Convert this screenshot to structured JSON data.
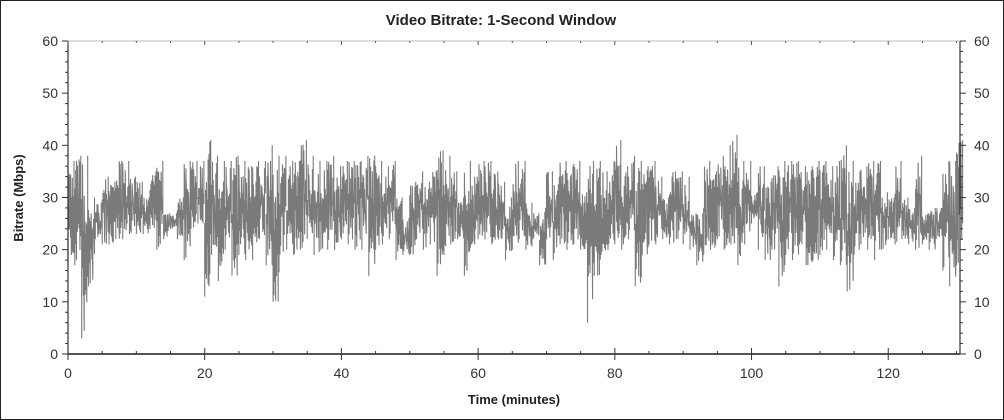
{
  "chart_data": {
    "type": "line",
    "title": "Video Bitrate: 1-Second Window",
    "xlabel": "Time (minutes)",
    "ylabel": "Bitrate (Mbps)",
    "xlim": [
      0,
      130.5
    ],
    "ylim": [
      0,
      60
    ],
    "x_ticks": [
      0,
      20,
      40,
      60,
      80,
      100,
      120
    ],
    "y_ticks": [
      0,
      10,
      20,
      30,
      40,
      50,
      60
    ],
    "right_axis_mirrored": true,
    "grid": false,
    "series_color": "#7a7a7a",
    "series": [
      {
        "encoding": "per-minute min/max range",
        "x_minutes": "0..130",
        "ranges": [
          [
            17,
            37
          ],
          [
            17,
            38
          ],
          [
            3,
            38
          ],
          [
            13,
            30
          ],
          [
            22,
            29
          ],
          [
            21,
            34
          ],
          [
            21,
            33
          ],
          [
            22,
            37
          ],
          [
            22,
            37
          ],
          [
            23,
            34
          ],
          [
            23,
            33
          ],
          [
            23,
            30
          ],
          [
            24,
            35
          ],
          [
            20,
            37
          ],
          [
            22,
            27
          ],
          [
            24,
            27
          ],
          [
            22,
            30
          ],
          [
            18,
            37
          ],
          [
            24,
            37
          ],
          [
            25,
            37
          ],
          [
            11,
            41
          ],
          [
            19,
            38
          ],
          [
            14,
            37
          ],
          [
            20,
            37
          ],
          [
            15,
            38
          ],
          [
            19,
            37
          ],
          [
            18,
            36
          ],
          [
            18,
            37
          ],
          [
            22,
            37
          ],
          [
            17,
            40
          ],
          [
            10,
            38
          ],
          [
            19,
            38
          ],
          [
            20,
            37
          ],
          [
            19,
            37
          ],
          [
            20,
            41
          ],
          [
            22,
            38
          ],
          [
            19,
            37
          ],
          [
            20,
            37
          ],
          [
            20,
            38
          ],
          [
            20,
            36
          ],
          [
            22,
            37
          ],
          [
            21,
            37
          ],
          [
            20,
            37
          ],
          [
            20,
            38
          ],
          [
            15,
            38
          ],
          [
            20,
            37
          ],
          [
            21,
            36
          ],
          [
            22,
            37
          ],
          [
            18,
            30
          ],
          [
            19,
            26
          ],
          [
            19,
            33
          ],
          [
            22,
            35
          ],
          [
            20,
            33
          ],
          [
            21,
            35
          ],
          [
            15,
            39
          ],
          [
            19,
            38
          ],
          [
            21,
            35
          ],
          [
            22,
            30
          ],
          [
            15,
            37
          ],
          [
            21,
            34
          ],
          [
            22,
            37
          ],
          [
            22,
            37
          ],
          [
            21,
            35
          ],
          [
            22,
            33
          ],
          [
            18,
            30
          ],
          [
            20,
            37
          ],
          [
            22,
            37
          ],
          [
            20,
            29
          ],
          [
            22,
            27
          ],
          [
            17,
            28
          ],
          [
            22,
            35
          ],
          [
            18,
            34
          ],
          [
            21,
            37
          ],
          [
            20,
            36
          ],
          [
            21,
            37
          ],
          [
            20,
            31
          ],
          [
            6,
            37
          ],
          [
            15,
            37
          ],
          [
            19,
            35
          ],
          [
            20,
            37
          ],
          [
            21,
            41
          ],
          [
            20,
            36
          ],
          [
            22,
            38
          ],
          [
            13,
            37
          ],
          [
            19,
            36
          ],
          [
            21,
            37
          ],
          [
            21,
            34
          ],
          [
            22,
            30
          ],
          [
            21,
            35
          ],
          [
            22,
            35
          ],
          [
            21,
            34
          ],
          [
            20,
            27
          ],
          [
            17,
            27
          ],
          [
            19,
            37
          ],
          [
            20,
            35
          ],
          [
            22,
            38
          ],
          [
            20,
            40
          ],
          [
            21,
            42
          ],
          [
            17,
            37
          ],
          [
            21,
            37
          ],
          [
            25,
            31
          ],
          [
            20,
            36
          ],
          [
            18,
            33
          ],
          [
            20,
            36
          ],
          [
            13,
            37
          ],
          [
            19,
            37
          ],
          [
            18,
            37
          ],
          [
            21,
            36
          ],
          [
            17,
            36
          ],
          [
            18,
            37
          ],
          [
            19,
            37
          ],
          [
            20,
            36
          ],
          [
            18,
            37
          ],
          [
            17,
            40
          ],
          [
            12,
            37
          ],
          [
            19,
            35
          ],
          [
            21,
            36
          ],
          [
            20,
            37
          ],
          [
            18,
            37
          ],
          [
            20,
            31
          ],
          [
            22,
            30
          ],
          [
            21,
            37
          ],
          [
            22,
            30
          ],
          [
            21,
            28
          ],
          [
            20,
            38
          ],
          [
            21,
            27
          ],
          [
            20,
            28
          ],
          [
            22,
            28
          ],
          [
            16,
            37
          ],
          [
            13,
            37
          ],
          [
            17,
            41
          ]
        ]
      }
    ]
  }
}
